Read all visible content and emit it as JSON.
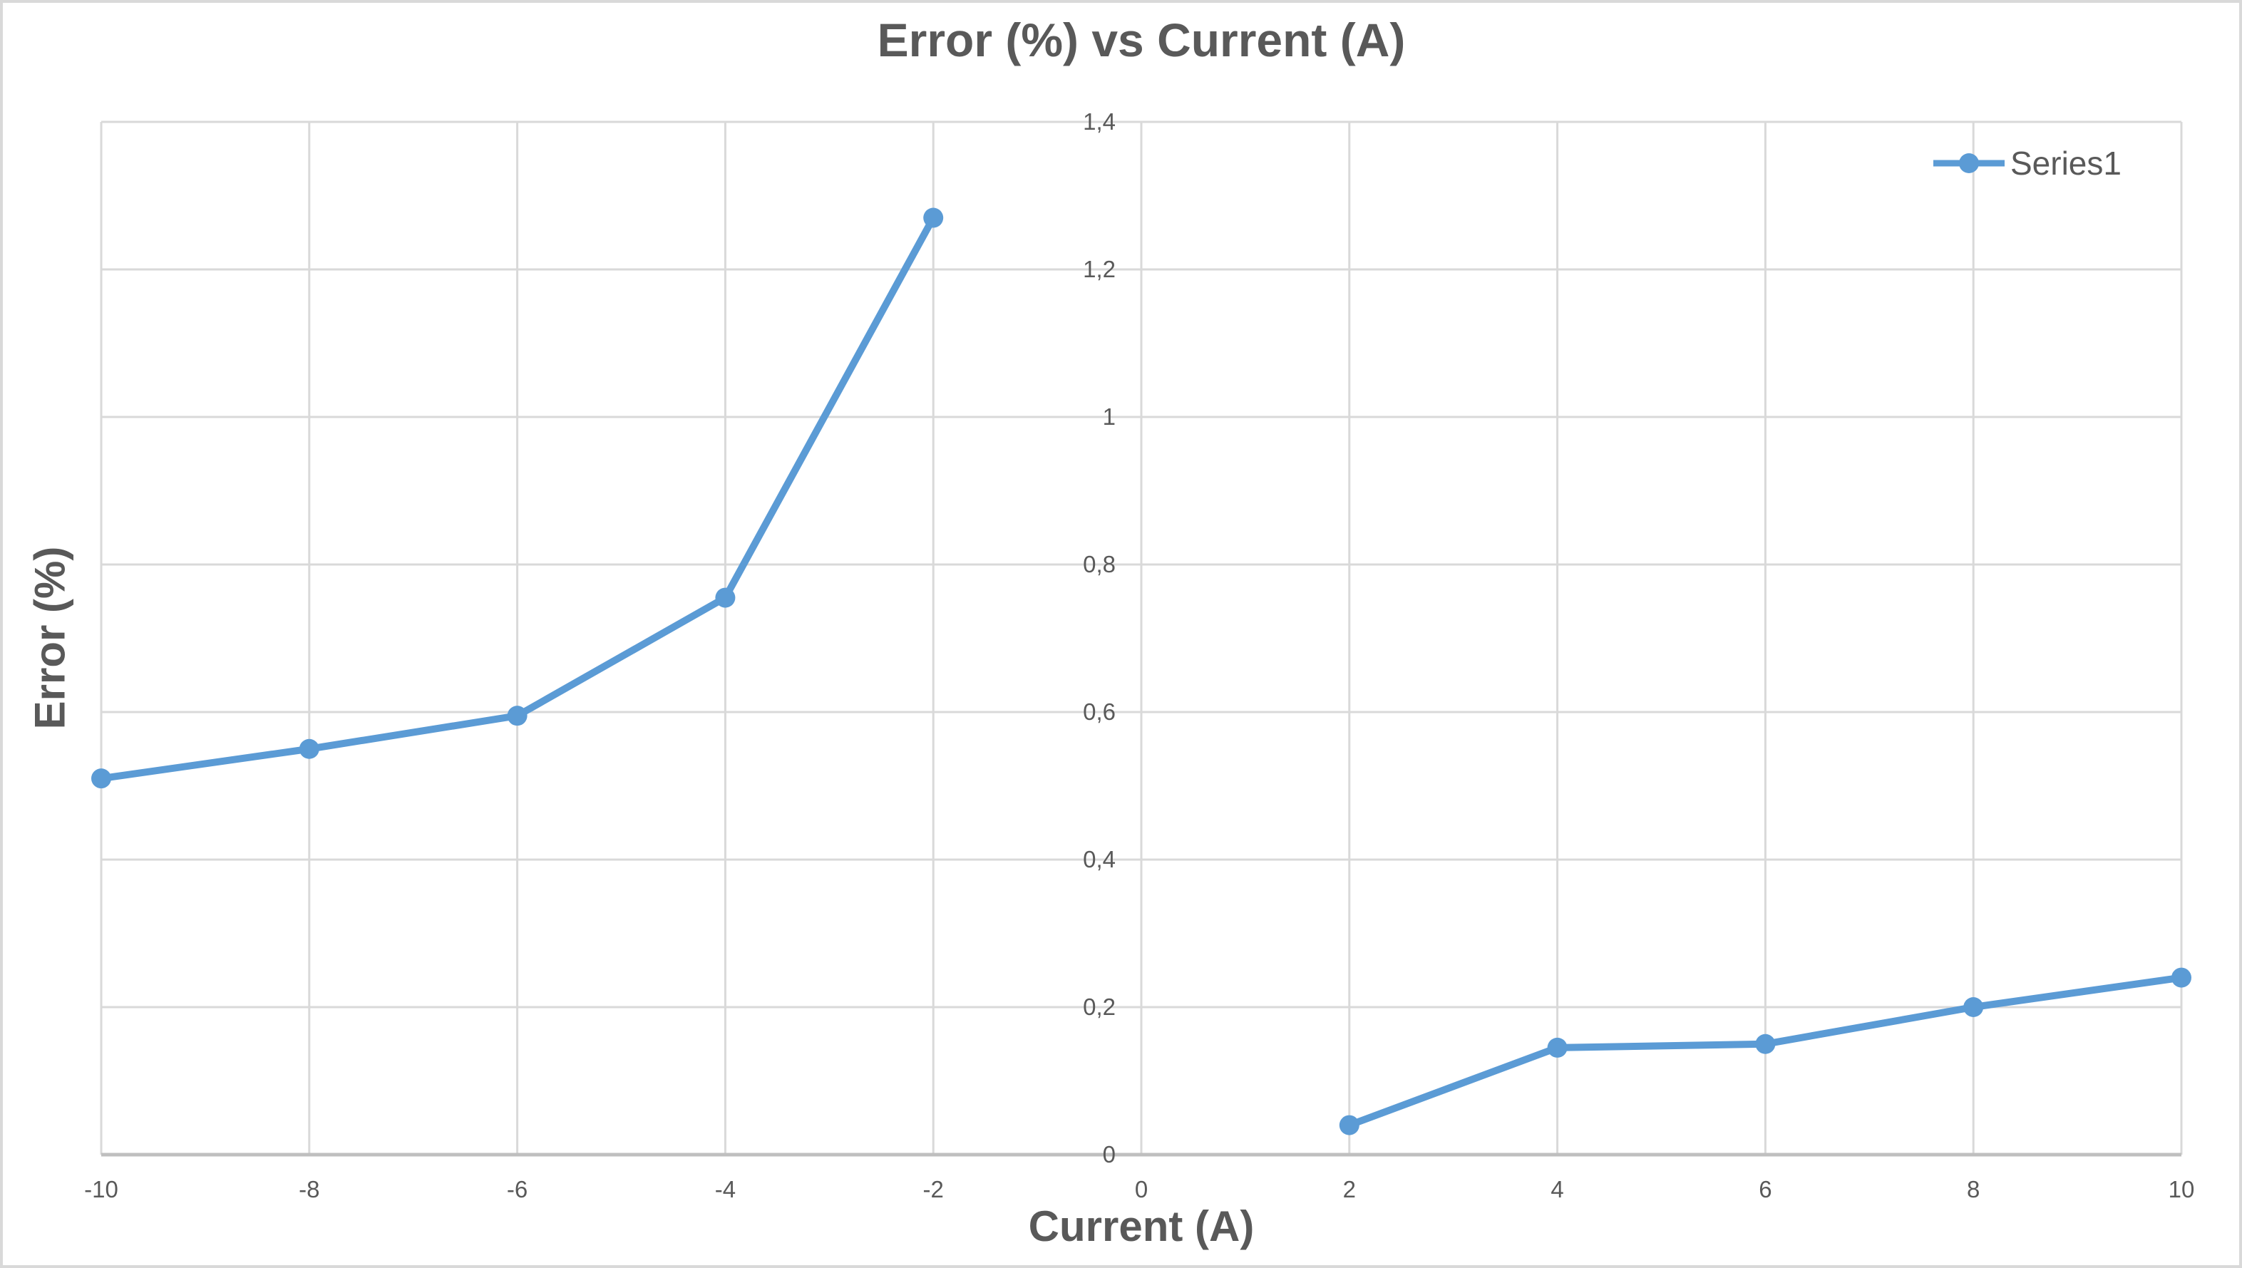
{
  "chart_data": {
    "type": "line",
    "title": "Error (%) vs Current (A)",
    "xlabel": "Current (A)",
    "ylabel": "Error (%)",
    "xlim": [
      -10,
      10
    ],
    "ylim": [
      0,
      1.4
    ],
    "grid": true,
    "legend_position": "top-right",
    "x_ticks": [
      {
        "v": -10,
        "label": "-10"
      },
      {
        "v": -8,
        "label": "-8"
      },
      {
        "v": -6,
        "label": "-6"
      },
      {
        "v": -4,
        "label": "-4"
      },
      {
        "v": -2,
        "label": "-2"
      },
      {
        "v": 0,
        "label": "0"
      },
      {
        "v": 2,
        "label": "2"
      },
      {
        "v": 4,
        "label": "4"
      },
      {
        "v": 6,
        "label": "6"
      },
      {
        "v": 8,
        "label": "8"
      },
      {
        "v": 10,
        "label": "10"
      }
    ],
    "y_ticks": [
      {
        "v": 0,
        "label": "0"
      },
      {
        "v": 0.2,
        "label": "0,2"
      },
      {
        "v": 0.4,
        "label": "0,4"
      },
      {
        "v": 0.6,
        "label": "0,6"
      },
      {
        "v": 0.8,
        "label": "0,8"
      },
      {
        "v": 1,
        "label": "1"
      },
      {
        "v": 1.2,
        "label": "1,2"
      },
      {
        "v": 1.4,
        "label": "1,4"
      }
    ],
    "series": [
      {
        "name": "Series1",
        "color": "#5B9BD5",
        "marker": "circle",
        "segments": [
          {
            "points": [
              [
                -10,
                0.51
              ],
              [
                -8,
                0.55
              ],
              [
                -6,
                0.595
              ],
              [
                -4,
                0.755
              ],
              [
                -2,
                1.27
              ]
            ]
          },
          {
            "points": [
              [
                2,
                0.04
              ],
              [
                4,
                0.145
              ],
              [
                6,
                0.15
              ],
              [
                8,
                0.2
              ],
              [
                10,
                0.24
              ]
            ]
          }
        ]
      }
    ]
  },
  "colors": {
    "series_blue": "#5B9BD5",
    "gridline": "#D9D9D9",
    "axis_line": "#BFBFBF",
    "tick_text": "#595959",
    "title_text": "#595959",
    "background": "#FFFFFF",
    "border": "#D9D9D9"
  }
}
